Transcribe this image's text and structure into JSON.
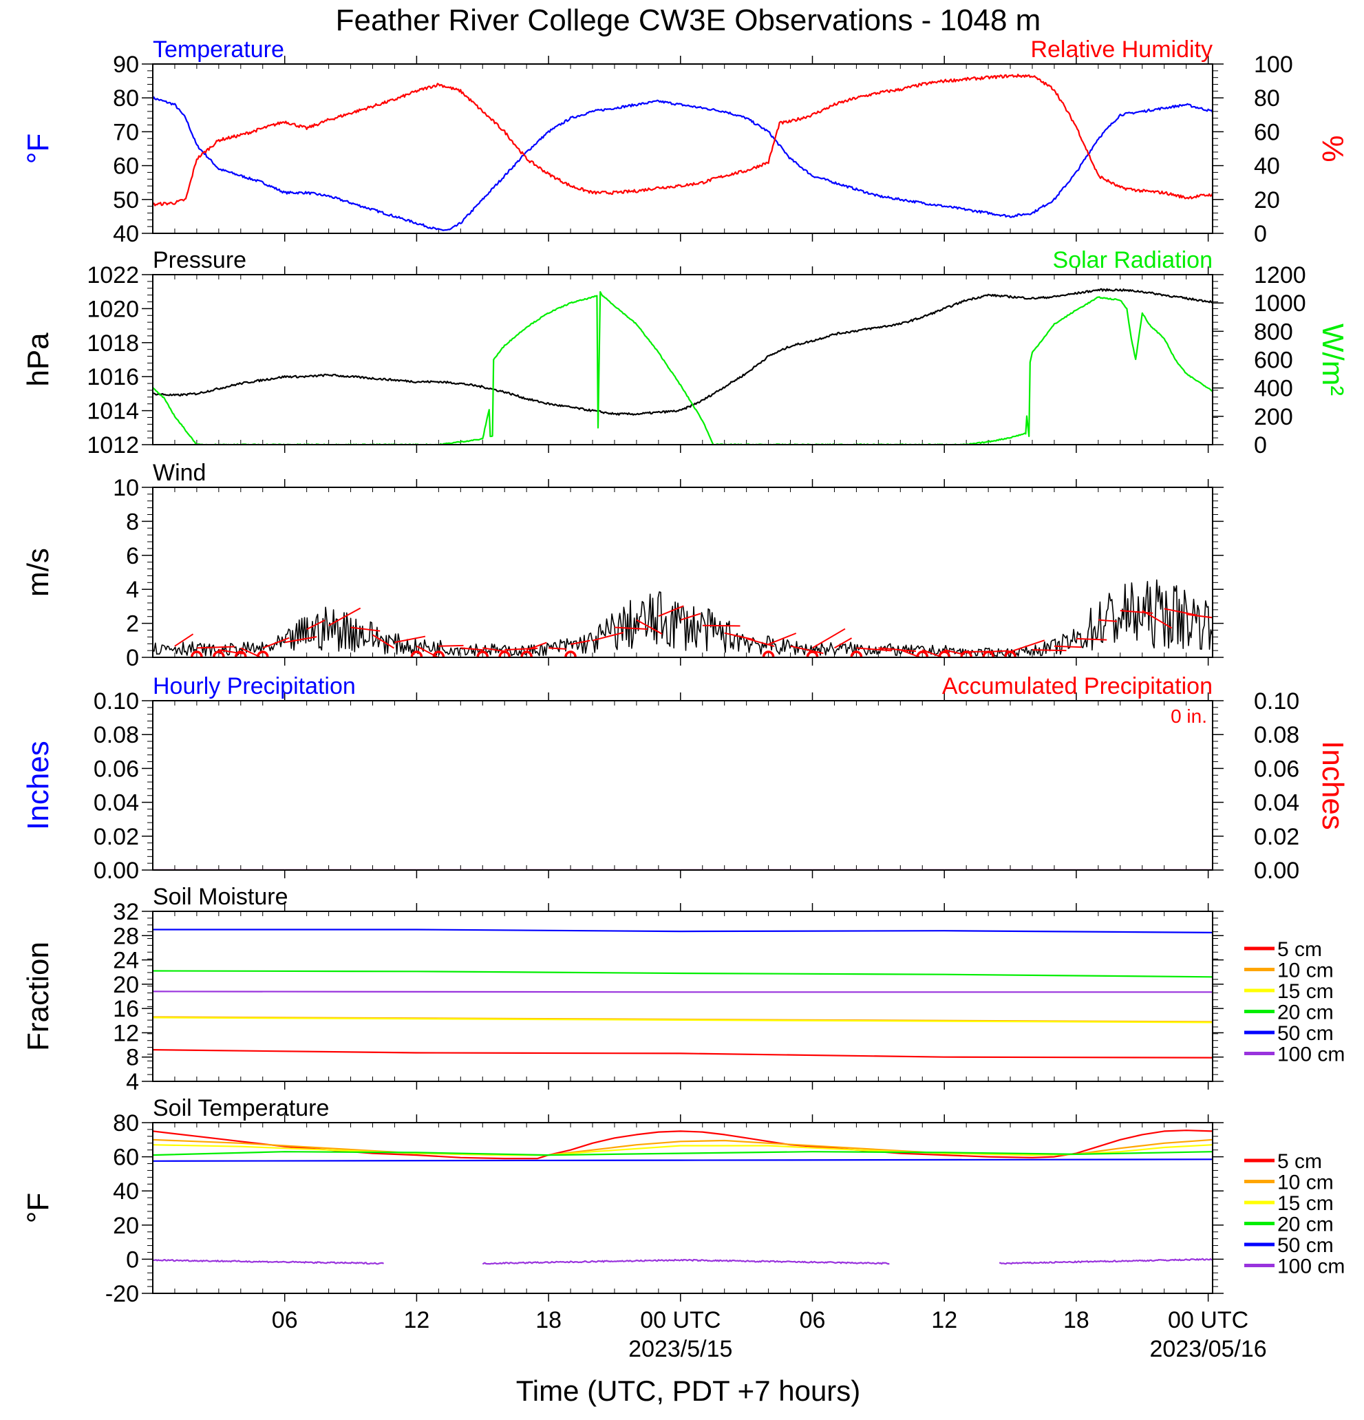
{
  "title": "Feather River College CW3E Observations - 1048 m",
  "xaxis": {
    "title": "Time (UTC, PDT +7 hours)",
    "ticks": [
      {
        "h": 6,
        "label": "06"
      },
      {
        "h": 12,
        "label": "12"
      },
      {
        "h": 18,
        "label": "18"
      },
      {
        "h": 24,
        "label": "00 UTC",
        "sub": "2023/5/15"
      },
      {
        "h": 30,
        "label": "06"
      },
      {
        "h": 36,
        "label": "12"
      },
      {
        "h": 42,
        "label": "18"
      },
      {
        "h": 48,
        "label": "00 UTC",
        "sub": "2023/05/16"
      }
    ],
    "range_hours": [
      0,
      48.2
    ]
  },
  "legend_labels": [
    "5 cm",
    "10 cm",
    "15 cm",
    "20 cm",
    "50 cm",
    "100 cm"
  ],
  "colors": {
    "temperature": "#0000ff",
    "humidity": "#ff0000",
    "pressure": "#000000",
    "solar": "#00ee00",
    "wind": "#000000",
    "gust": "#ff0000",
    "depth_5": "#ff0000",
    "depth_10": "#ffa500",
    "depth_15": "#ffff00",
    "depth_20": "#00ee00",
    "depth_50": "#0000ff",
    "depth_100": "#9933dd"
  },
  "chart_data": [
    {
      "id": "temp_rh",
      "type": "line",
      "left_title": "Temperature",
      "right_title": "Relative Humidity",
      "ylabel_left": "°F",
      "ylabel_right": "%",
      "ylim_left": [
        40,
        90
      ],
      "ylim_right": [
        0,
        100
      ],
      "yticks_left": [
        40,
        50,
        60,
        70,
        80,
        90
      ],
      "yticks_right": [
        0,
        20,
        40,
        60,
        80,
        100
      ],
      "series": [
        {
          "name": "Temperature",
          "axis": "left",
          "x": [
            0,
            1,
            1.5,
            2,
            3,
            4,
            5,
            6,
            7,
            8,
            9,
            10,
            11,
            12,
            13,
            13.5,
            14,
            15,
            16,
            17,
            18,
            19,
            20,
            21,
            22,
            23,
            24,
            25,
            26,
            27,
            28,
            28.5,
            29,
            30,
            31,
            32,
            33,
            34,
            35,
            36,
            37,
            38,
            39,
            40,
            41,
            42,
            43,
            44,
            45,
            46,
            47,
            48.2
          ],
          "y": [
            80,
            78,
            74,
            66,
            59,
            57,
            55,
            52,
            52,
            51,
            49,
            47,
            45,
            43,
            41,
            41,
            43,
            50,
            57,
            64,
            70,
            74,
            76,
            77,
            78,
            79,
            78,
            77,
            76,
            74,
            70,
            66,
            62,
            57,
            55,
            53,
            51,
            50,
            49,
            48,
            47,
            46,
            45,
            46,
            50,
            58,
            68,
            75,
            76,
            77,
            78,
            76
          ]
        },
        {
          "name": "Relative Humidity",
          "axis": "right",
          "x": [
            0,
            1,
            1.5,
            2,
            3,
            4,
            5,
            6,
            7,
            8,
            9,
            10,
            11,
            12,
            13,
            14,
            15,
            16,
            17,
            18,
            19,
            20,
            21,
            22,
            23,
            24,
            25,
            26,
            27,
            28,
            28.5,
            29,
            30,
            31,
            32,
            33,
            34,
            35,
            36,
            37,
            38,
            39,
            40,
            41,
            42,
            43,
            44,
            45,
            46,
            47,
            48.2
          ],
          "y": [
            17,
            18,
            20,
            44,
            55,
            58,
            62,
            66,
            62,
            67,
            71,
            75,
            79,
            84,
            88,
            84,
            72,
            60,
            44,
            35,
            28,
            24,
            24,
            25,
            27,
            28,
            30,
            34,
            37,
            42,
            65,
            66,
            70,
            76,
            80,
            83,
            85,
            88,
            90,
            91,
            92,
            93,
            93,
            85,
            63,
            34,
            27,
            25,
            24,
            21,
            23
          ]
        }
      ]
    },
    {
      "id": "pressure_solar",
      "type": "line",
      "left_title": "Pressure",
      "right_title": "Solar Radiation",
      "ylabel_left": "hPa",
      "ylabel_right": "W/m²",
      "ylim_left": [
        1012,
        1022
      ],
      "ylim_right": [
        0,
        1200
      ],
      "yticks_left": [
        1012,
        1014,
        1016,
        1018,
        1020,
        1022
      ],
      "yticks_right": [
        0,
        200,
        400,
        600,
        800,
        1000,
        1200
      ],
      "series": [
        {
          "name": "Pressure",
          "axis": "left",
          "x": [
            0,
            1,
            2,
            3,
            4,
            5,
            6,
            7,
            8,
            9,
            10,
            11,
            12,
            13,
            14,
            15,
            16,
            17,
            18,
            19,
            20,
            21,
            22,
            23,
            24,
            25,
            26,
            27,
            28,
            29,
            30,
            31,
            32,
            33,
            34,
            35,
            36,
            37,
            38,
            39,
            40,
            41,
            42,
            43,
            44,
            45,
            46,
            47,
            48.2
          ],
          "y": [
            1015.0,
            1014.9,
            1015.0,
            1015.3,
            1015.6,
            1015.8,
            1016.0,
            1016.0,
            1016.1,
            1016.0,
            1015.9,
            1015.8,
            1015.7,
            1015.7,
            1015.6,
            1015.4,
            1015.1,
            1014.7,
            1014.4,
            1014.2,
            1014.0,
            1013.8,
            1013.8,
            1013.9,
            1014.0,
            1014.6,
            1015.4,
            1016.2,
            1017.2,
            1017.8,
            1018.1,
            1018.5,
            1018.7,
            1018.9,
            1019.1,
            1019.5,
            1020.0,
            1020.5,
            1020.8,
            1020.7,
            1020.6,
            1020.7,
            1020.9,
            1021.1,
            1021.1,
            1021.0,
            1020.8,
            1020.6,
            1020.4
          ]
        },
        {
          "name": "Solar Radiation",
          "axis": "right",
          "x": [
            0,
            0.5,
            1,
            1.5,
            2,
            3,
            4,
            5,
            6,
            7,
            8,
            9,
            10,
            11,
            12,
            13,
            14,
            15,
            15.3,
            15.35,
            15.45,
            15.5,
            15.6,
            16,
            17,
            18,
            19,
            20,
            20.2,
            20.25,
            20.35,
            20.4,
            21,
            22,
            23,
            24,
            25,
            25.5,
            26,
            27,
            28,
            29,
            30,
            31,
            32,
            33,
            34,
            35,
            36,
            37,
            38,
            39,
            39.7,
            39.75,
            39.85,
            39.9,
            40,
            41,
            42,
            43,
            44,
            44.3,
            44.5,
            44.7,
            45,
            45.3,
            46,
            46.5,
            47,
            47.5,
            48,
            48.2
          ],
          "y": [
            400,
            330,
            200,
            100,
            0,
            0,
            0,
            0,
            0,
            0,
            0,
            0,
            0,
            0,
            0,
            0,
            20,
            40,
            250,
            60,
            60,
            600,
            620,
            700,
            830,
            930,
            1000,
            1040,
            1050,
            120,
            1080,
            1060,
            980,
            850,
            650,
            420,
            170,
            0,
            0,
            0,
            0,
            0,
            0,
            0,
            0,
            0,
            0,
            0,
            0,
            0,
            20,
            50,
            80,
            200,
            60,
            580,
            650,
            850,
            950,
            1040,
            1020,
            960,
            750,
            600,
            930,
            850,
            750,
            600,
            500,
            450,
            400,
            380
          ]
        }
      ]
    },
    {
      "id": "wind",
      "type": "line",
      "left_title": "Wind",
      "ylabel_left": "m/s",
      "ylim_left": [
        0,
        10
      ],
      "yticks_left": [
        0,
        2,
        4,
        6,
        8,
        10
      ],
      "series": [
        {
          "name": "Wind",
          "x": [
            0,
            1,
            2,
            3,
            4,
            5,
            6,
            7,
            8,
            9,
            10,
            11,
            12,
            13,
            14,
            15,
            16,
            17,
            18,
            19,
            20,
            21,
            22,
            23,
            24,
            25,
            26,
            27,
            28,
            29,
            30,
            31,
            32,
            33,
            34,
            35,
            36,
            37,
            38,
            39,
            40,
            41,
            42,
            43,
            44,
            45,
            46,
            47,
            48.2
          ],
          "y": [
            0.5,
            0.6,
            0.5,
            0.4,
            0.5,
            0.5,
            0.8,
            1.5,
            1.7,
            1.6,
            1.2,
            0.8,
            0.6,
            0.6,
            0.5,
            0.5,
            0.4,
            0.4,
            0.5,
            0.7,
            0.9,
            1.6,
            2.0,
            2.2,
            2.0,
            1.7,
            1.3,
            1.0,
            0.7,
            0.6,
            0.5,
            0.5,
            0.5,
            0.5,
            0.4,
            0.4,
            0.4,
            0.3,
            0.3,
            0.3,
            0.4,
            0.6,
            1.0,
            2.0,
            2.5,
            2.5,
            2.6,
            2.3,
            2.0
          ]
        }
      ],
      "direction_markers_x": [
        2,
        3,
        4,
        5,
        12,
        13,
        15,
        16,
        17,
        19,
        28,
        30,
        32,
        35,
        36,
        37,
        38,
        39
      ]
    },
    {
      "id": "precip",
      "type": "line",
      "left_title": "Hourly Precipitation",
      "right_title": "Accumulated Precipitation",
      "annotation": "0 in.",
      "ylabel_left": "Inches",
      "ylabel_right": "Inches",
      "ylim_left": [
        0,
        0.1
      ],
      "ylim_right": [
        0,
        0.1
      ],
      "yticks_left": [
        0,
        0.02,
        0.04,
        0.06,
        0.08,
        0.1
      ],
      "yticks_right": [
        0,
        0.02,
        0.04,
        0.06,
        0.08,
        0.1
      ],
      "series": [
        {
          "name": "Hourly Precipitation",
          "axis": "left",
          "x": [
            0,
            48.2
          ],
          "y": [
            0,
            0
          ]
        },
        {
          "name": "Accumulated Precipitation",
          "axis": "right",
          "x": [
            0,
            48.2
          ],
          "y": [
            0,
            0
          ]
        }
      ]
    },
    {
      "id": "soil_moisture",
      "type": "line",
      "left_title": "Soil Moisture",
      "ylabel_left": "Fraction",
      "ylim_left": [
        4,
        32
      ],
      "yticks_left": [
        4,
        8,
        12,
        16,
        20,
        24,
        28,
        32
      ],
      "series": [
        {
          "name": "5 cm",
          "x": [
            0,
            12,
            24,
            36,
            48.2
          ],
          "y": [
            9.2,
            8.7,
            8.6,
            8.0,
            7.9
          ]
        },
        {
          "name": "10 cm",
          "x": [
            0,
            48.2
          ],
          "y": [
            14.6,
            13.8
          ]
        },
        {
          "name": "15 cm",
          "x": [
            0,
            24,
            48.2
          ],
          "y": [
            14.5,
            14.1,
            13.7
          ]
        },
        {
          "name": "20 cm",
          "x": [
            0,
            12,
            24,
            36,
            48.2
          ],
          "y": [
            22.2,
            22.1,
            21.8,
            21.6,
            21.2
          ]
        },
        {
          "name": "50 cm",
          "x": [
            0,
            12,
            24,
            36,
            48.2
          ],
          "y": [
            29.0,
            29.0,
            28.7,
            28.8,
            28.5
          ]
        },
        {
          "name": "100 cm",
          "x": [
            0,
            24,
            48.2
          ],
          "y": [
            18.8,
            18.7,
            18.7
          ]
        }
      ]
    },
    {
      "id": "soil_temperature",
      "type": "line",
      "left_title": "Soil Temperature",
      "ylabel_left": "°F",
      "ylim_left": [
        -20,
        80
      ],
      "yticks_left": [
        -20,
        0,
        20,
        40,
        60,
        80
      ],
      "series": [
        {
          "name": "5 cm",
          "x": [
            0,
            2,
            4,
            6,
            8,
            10,
            12,
            14,
            16,
            17.5,
            18,
            19,
            20,
            21,
            22,
            23,
            24,
            25,
            26,
            27,
            28,
            29,
            30,
            32,
            34,
            36,
            38,
            40,
            41,
            42,
            43,
            44,
            45,
            46,
            47,
            48.2
          ],
          "y": [
            75,
            72,
            69,
            66,
            64,
            62,
            61,
            59.5,
            59,
            59,
            61,
            64,
            68,
            71,
            73,
            74.5,
            75,
            74.5,
            73,
            71,
            69,
            67,
            66,
            64,
            62,
            61,
            60,
            59.5,
            60,
            62,
            66,
            70,
            73,
            75,
            75.5,
            75
          ]
        },
        {
          "name": "10 cm",
          "x": [
            0,
            4,
            8,
            12,
            16,
            18,
            20,
            22,
            24,
            26,
            28,
            32,
            36,
            40,
            42,
            44,
            46,
            48.2
          ],
          "y": [
            70,
            68,
            65,
            62,
            61,
            61,
            64,
            67,
            69,
            69.5,
            68,
            65,
            62,
            61,
            61.5,
            65,
            68,
            70
          ]
        },
        {
          "name": "15 cm",
          "x": [
            0,
            4,
            8,
            12,
            16,
            18,
            20,
            24,
            28,
            32,
            36,
            40,
            42,
            44,
            46,
            48.2
          ],
          "y": [
            67,
            66,
            64,
            62,
            61,
            61,
            63,
            66.5,
            66.5,
            64,
            62,
            61,
            61.5,
            63,
            65.5,
            67
          ]
        },
        {
          "name": "20 cm",
          "x": [
            0,
            6,
            12,
            18,
            24,
            30,
            36,
            42,
            48.2
          ],
          "y": [
            61,
            63,
            62.5,
            61,
            62,
            63,
            62.5,
            61.5,
            63
          ]
        },
        {
          "name": "50 cm",
          "x": [
            0,
            24,
            48.2
          ],
          "y": [
            57.5,
            58,
            58.5
          ]
        },
        {
          "name": "100 cm",
          "segments": [
            {
              "x": [
                0,
                10.5
              ],
              "y": [
                -0.5,
                -2.5
              ]
            },
            {
              "x": [
                15,
                24,
                33.5
              ],
              "y": [
                -2.5,
                -0.5,
                -2.5
              ]
            },
            {
              "x": [
                38.5,
                48.2
              ],
              "y": [
                -2.5,
                0
              ]
            }
          ]
        }
      ]
    }
  ]
}
